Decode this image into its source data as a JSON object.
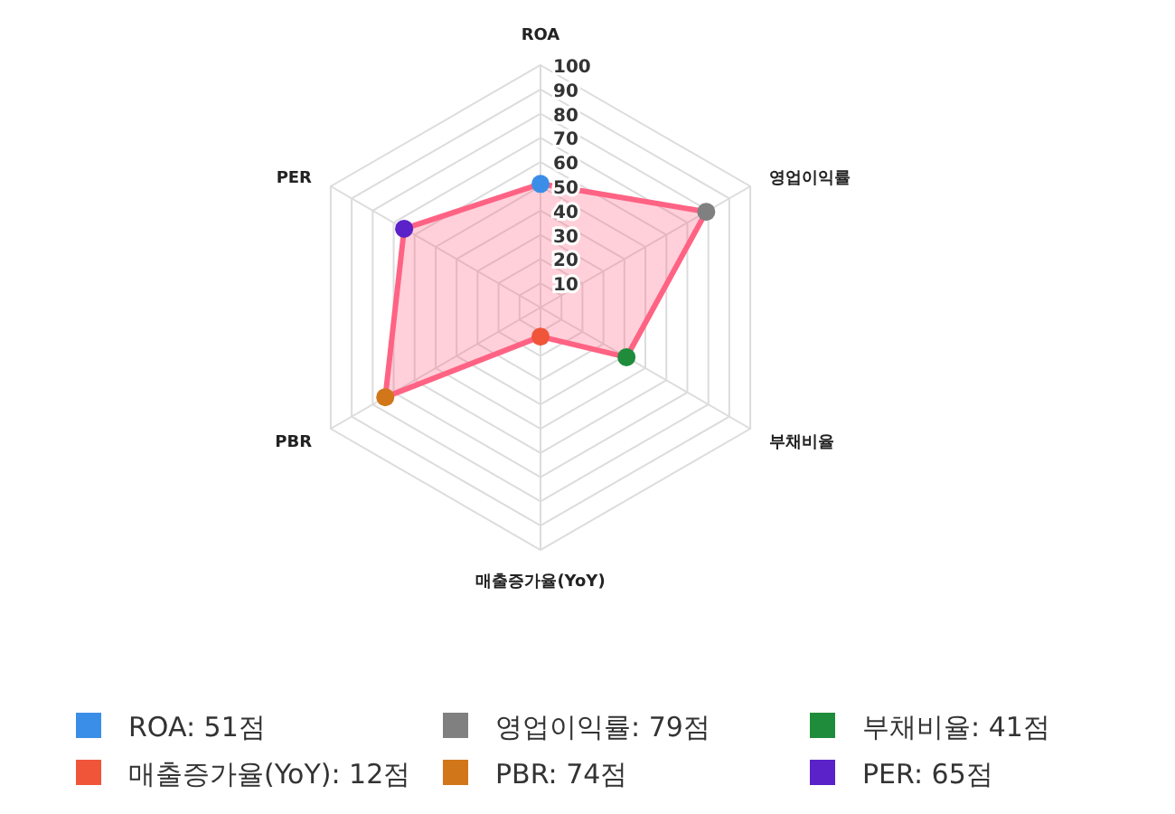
{
  "chart_data": {
    "type": "radar",
    "categories": [
      "ROA",
      "영업이익률",
      "부채비율",
      "매출증가율(YoY)",
      "PBR",
      "PER"
    ],
    "series": [
      {
        "color": "#ff6384",
        "values": [
          51,
          79,
          41,
          12,
          74,
          65
        ],
        "colors": [
          "#3b8ee8",
          "#808080",
          "#1e8c3a",
          "#f0553a",
          "#d2761a",
          "#5a22c8"
        ]
      }
    ],
    "annotations": [
      "ROA: 51점",
      "영업이익률: 79점",
      "부채비율: 41점",
      "매출증가율(YoY): 12점",
      "PBR: 74점",
      "PER: 65점"
    ],
    "ylim": [
      0,
      100
    ],
    "yticks": [
      10,
      20,
      30,
      40,
      50,
      60,
      70,
      80,
      90,
      100
    ],
    "grid": true,
    "marker": "circle"
  }
}
